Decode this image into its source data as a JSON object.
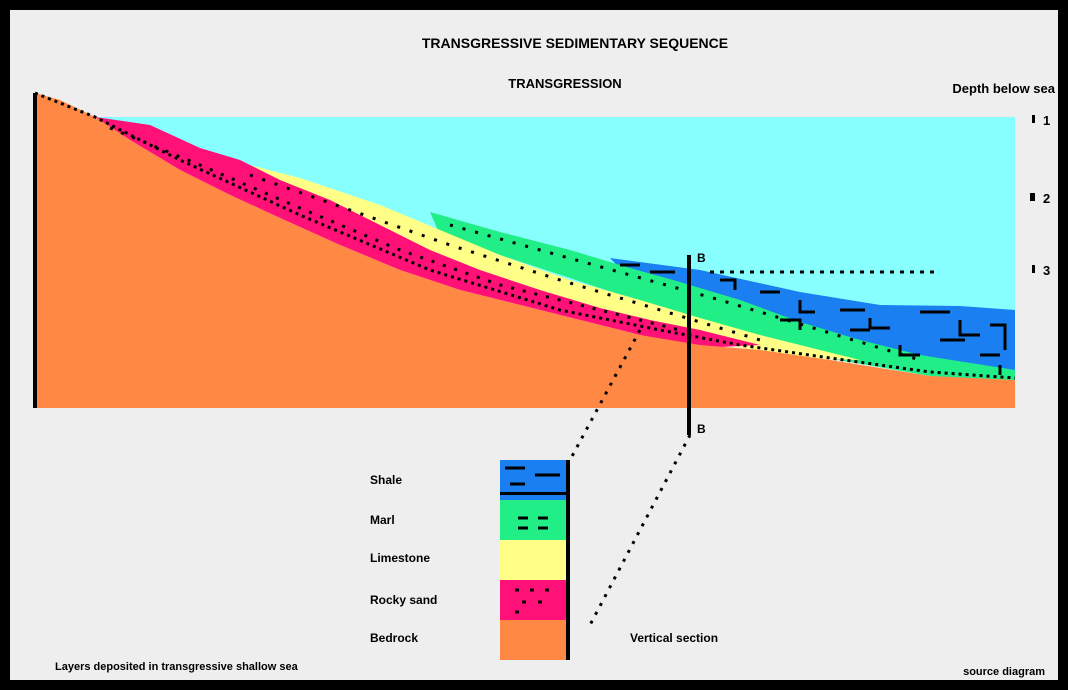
{
  "title": "TRANSGRESSIVE SEDIMENTARY SEQUENCE",
  "subtitle": "TRANSGRESSION",
  "depth_label": "Depth below sea",
  "depth_ticks": [
    "1",
    "2",
    "3"
  ],
  "core_top_label": "B",
  "core_bottom_label": "B",
  "legend": [
    {
      "label": "Shale",
      "color": "#1a7ff0"
    },
    {
      "label": "Marl",
      "color": "#22ee88"
    },
    {
      "label": "Limestone",
      "color": "#ffff88"
    },
    {
      "label": "Rocky sand",
      "color": "#ff1177"
    },
    {
      "label": "Bedrock",
      "color": "#ff8844"
    }
  ],
  "core_caption": "Vertical section",
  "footnote": "Layers deposited in transgressive shallow sea",
  "credit": "source diagram",
  "colors": {
    "sea": "#88ffff",
    "bedrock": "#ff8844",
    "sand": "#ff1177",
    "limestone": "#ffff88",
    "marl": "#22ee88",
    "shale": "#1a7ff0",
    "panel": "#eeeeee"
  }
}
